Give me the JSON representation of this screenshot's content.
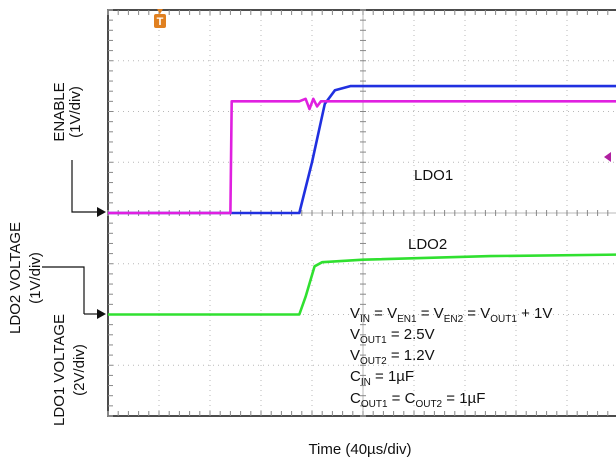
{
  "chart_data": {
    "type": "line",
    "x_axis": {
      "label": "Time (40µs/div)",
      "divisions": 10,
      "units_per_div": 40,
      "unit": "µs",
      "range": [
        0,
        400
      ]
    },
    "y_axis": {
      "divisions": 8
    },
    "y_labels": [
      {
        "text": "ENABLE",
        "scale": "(1V/div)"
      },
      {
        "text": "LDO2 VOLTAGE",
        "scale": "(1V/div)"
      },
      {
        "text": "LDO1 VOLTAGE",
        "scale": "(2V/div)"
      }
    ],
    "trigger_marker": "T",
    "series": [
      {
        "name": "ENABLE",
        "color": "#e020e0",
        "points": [
          [
            0,
            0
          ],
          [
            96,
            0
          ],
          [
            97,
            2.2
          ],
          [
            150,
            2.2
          ],
          [
            155,
            2.25
          ],
          [
            158,
            2.05
          ],
          [
            161,
            2.25
          ],
          [
            164,
            2.1
          ],
          [
            167,
            2.2
          ],
          [
            400,
            2.2
          ]
        ]
      },
      {
        "name": "LDO1",
        "color": "#2030e0",
        "points": [
          [
            0,
            0
          ],
          [
            150,
            0
          ],
          [
            160,
            1.0
          ],
          [
            170,
            2.15
          ],
          [
            178,
            2.42
          ],
          [
            190,
            2.5
          ],
          [
            300,
            2.5
          ],
          [
            400,
            2.5
          ]
        ]
      },
      {
        "name": "LDO2",
        "color": "#30e030",
        "points": [
          [
            0,
            -2
          ],
          [
            150,
            -2
          ],
          [
            155,
            -1.65
          ],
          [
            162,
            -1.05
          ],
          [
            168,
            -0.97
          ],
          [
            200,
            -0.92
          ],
          [
            300,
            -0.85
          ],
          [
            400,
            -0.82
          ]
        ]
      }
    ],
    "ref_markers": [
      "ENABLE",
      "LDO1",
      "LDO2"
    ],
    "grid": true
  },
  "annotations": {
    "vin_line": {
      "parts": [
        "V",
        "IN",
        " = V",
        "EN1",
        " = V",
        "EN2",
        " = V",
        "OUT1",
        " + 1V"
      ]
    },
    "vout1_line": {
      "parts": [
        "V",
        "OUT1",
        " = 2.5V"
      ]
    },
    "vout2_line": {
      "parts": [
        "V",
        "OUT2",
        " = 1.2V"
      ]
    },
    "cin_line": {
      "parts": [
        "C",
        "IN",
        " = 1µF"
      ]
    },
    "cout_line": {
      "parts": [
        "C",
        "OUT1",
        " = C",
        "OUT2",
        " = 1µF"
      ]
    }
  },
  "colors": {
    "grid": "#b8b8b8",
    "trigger": "#e08020",
    "offscreen_marker": "#b020a0"
  }
}
